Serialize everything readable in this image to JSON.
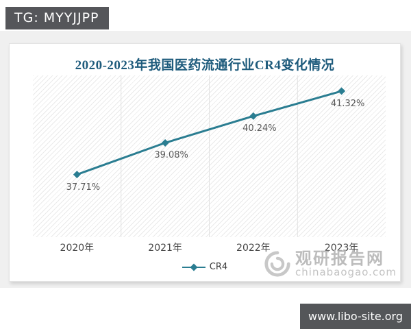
{
  "top_bar": {
    "tag_label": "TG: MYYJJPP"
  },
  "chart_card": {
    "title": "2020-2023年我国医药流通行业CR4变化情况",
    "legend": {
      "label": "CR4"
    }
  },
  "watermark": {
    "logo_icon": "swirl-logo-icon",
    "site_name": "观研报告网",
    "site_url": "chinabaogao.com"
  },
  "bottom_bar": {
    "url": "www.libo-site.org"
  },
  "colors": {
    "accent_teal": "#2a7d91",
    "title_blue": "#1e5b7c",
    "tag_bg": "#55565a",
    "watermark_gray": "#b9b9b9",
    "gridline": "#e1e1e1",
    "data_label_gray": "#595959"
  },
  "chart_data": {
    "type": "line",
    "title": "2020-2023年我国医药流通行业CR4变化情况",
    "categories": [
      "2020年",
      "2021年",
      "2022年",
      "2023年"
    ],
    "series": [
      {
        "name": "CR4",
        "values": [
          37.71,
          39.08,
          40.24,
          41.32
        ]
      }
    ],
    "point_labels": [
      "37.71%",
      "39.08%",
      "40.24%",
      "41.32%"
    ],
    "xlabel": "",
    "ylabel": "",
    "ylim": [
      35,
      42
    ],
    "grid": "vertical-category-separators",
    "legend_position": "bottom",
    "marker": "diamond"
  }
}
